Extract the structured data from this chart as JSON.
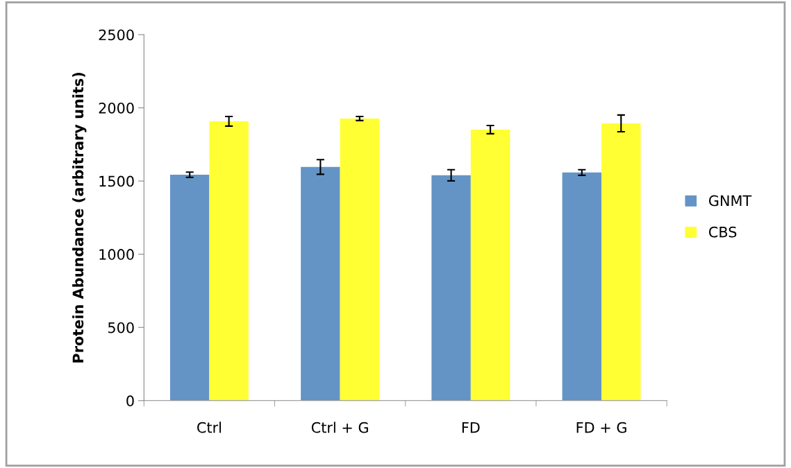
{
  "chart_data": {
    "type": "bar",
    "ylabel": "Protein Abundance (arbitrary units)",
    "categories": [
      "Ctrl",
      "Ctrl + G",
      "FD",
      "FD + G"
    ],
    "series": [
      {
        "name": "GNMT",
        "color": "#6494c6",
        "values": [
          1543,
          1596,
          1539,
          1558
        ],
        "errors": [
          18,
          50,
          38,
          19
        ]
      },
      {
        "name": "CBS",
        "color": "#ffff33",
        "values": [
          1908,
          1927,
          1851,
          1894
        ],
        "errors": [
          33,
          14,
          28,
          57
        ]
      }
    ],
    "ylim": [
      0,
      2500
    ],
    "yticks": [
      0,
      500,
      1000,
      1500,
      2000,
      2500
    ],
    "grid": false,
    "legend": "right"
  }
}
